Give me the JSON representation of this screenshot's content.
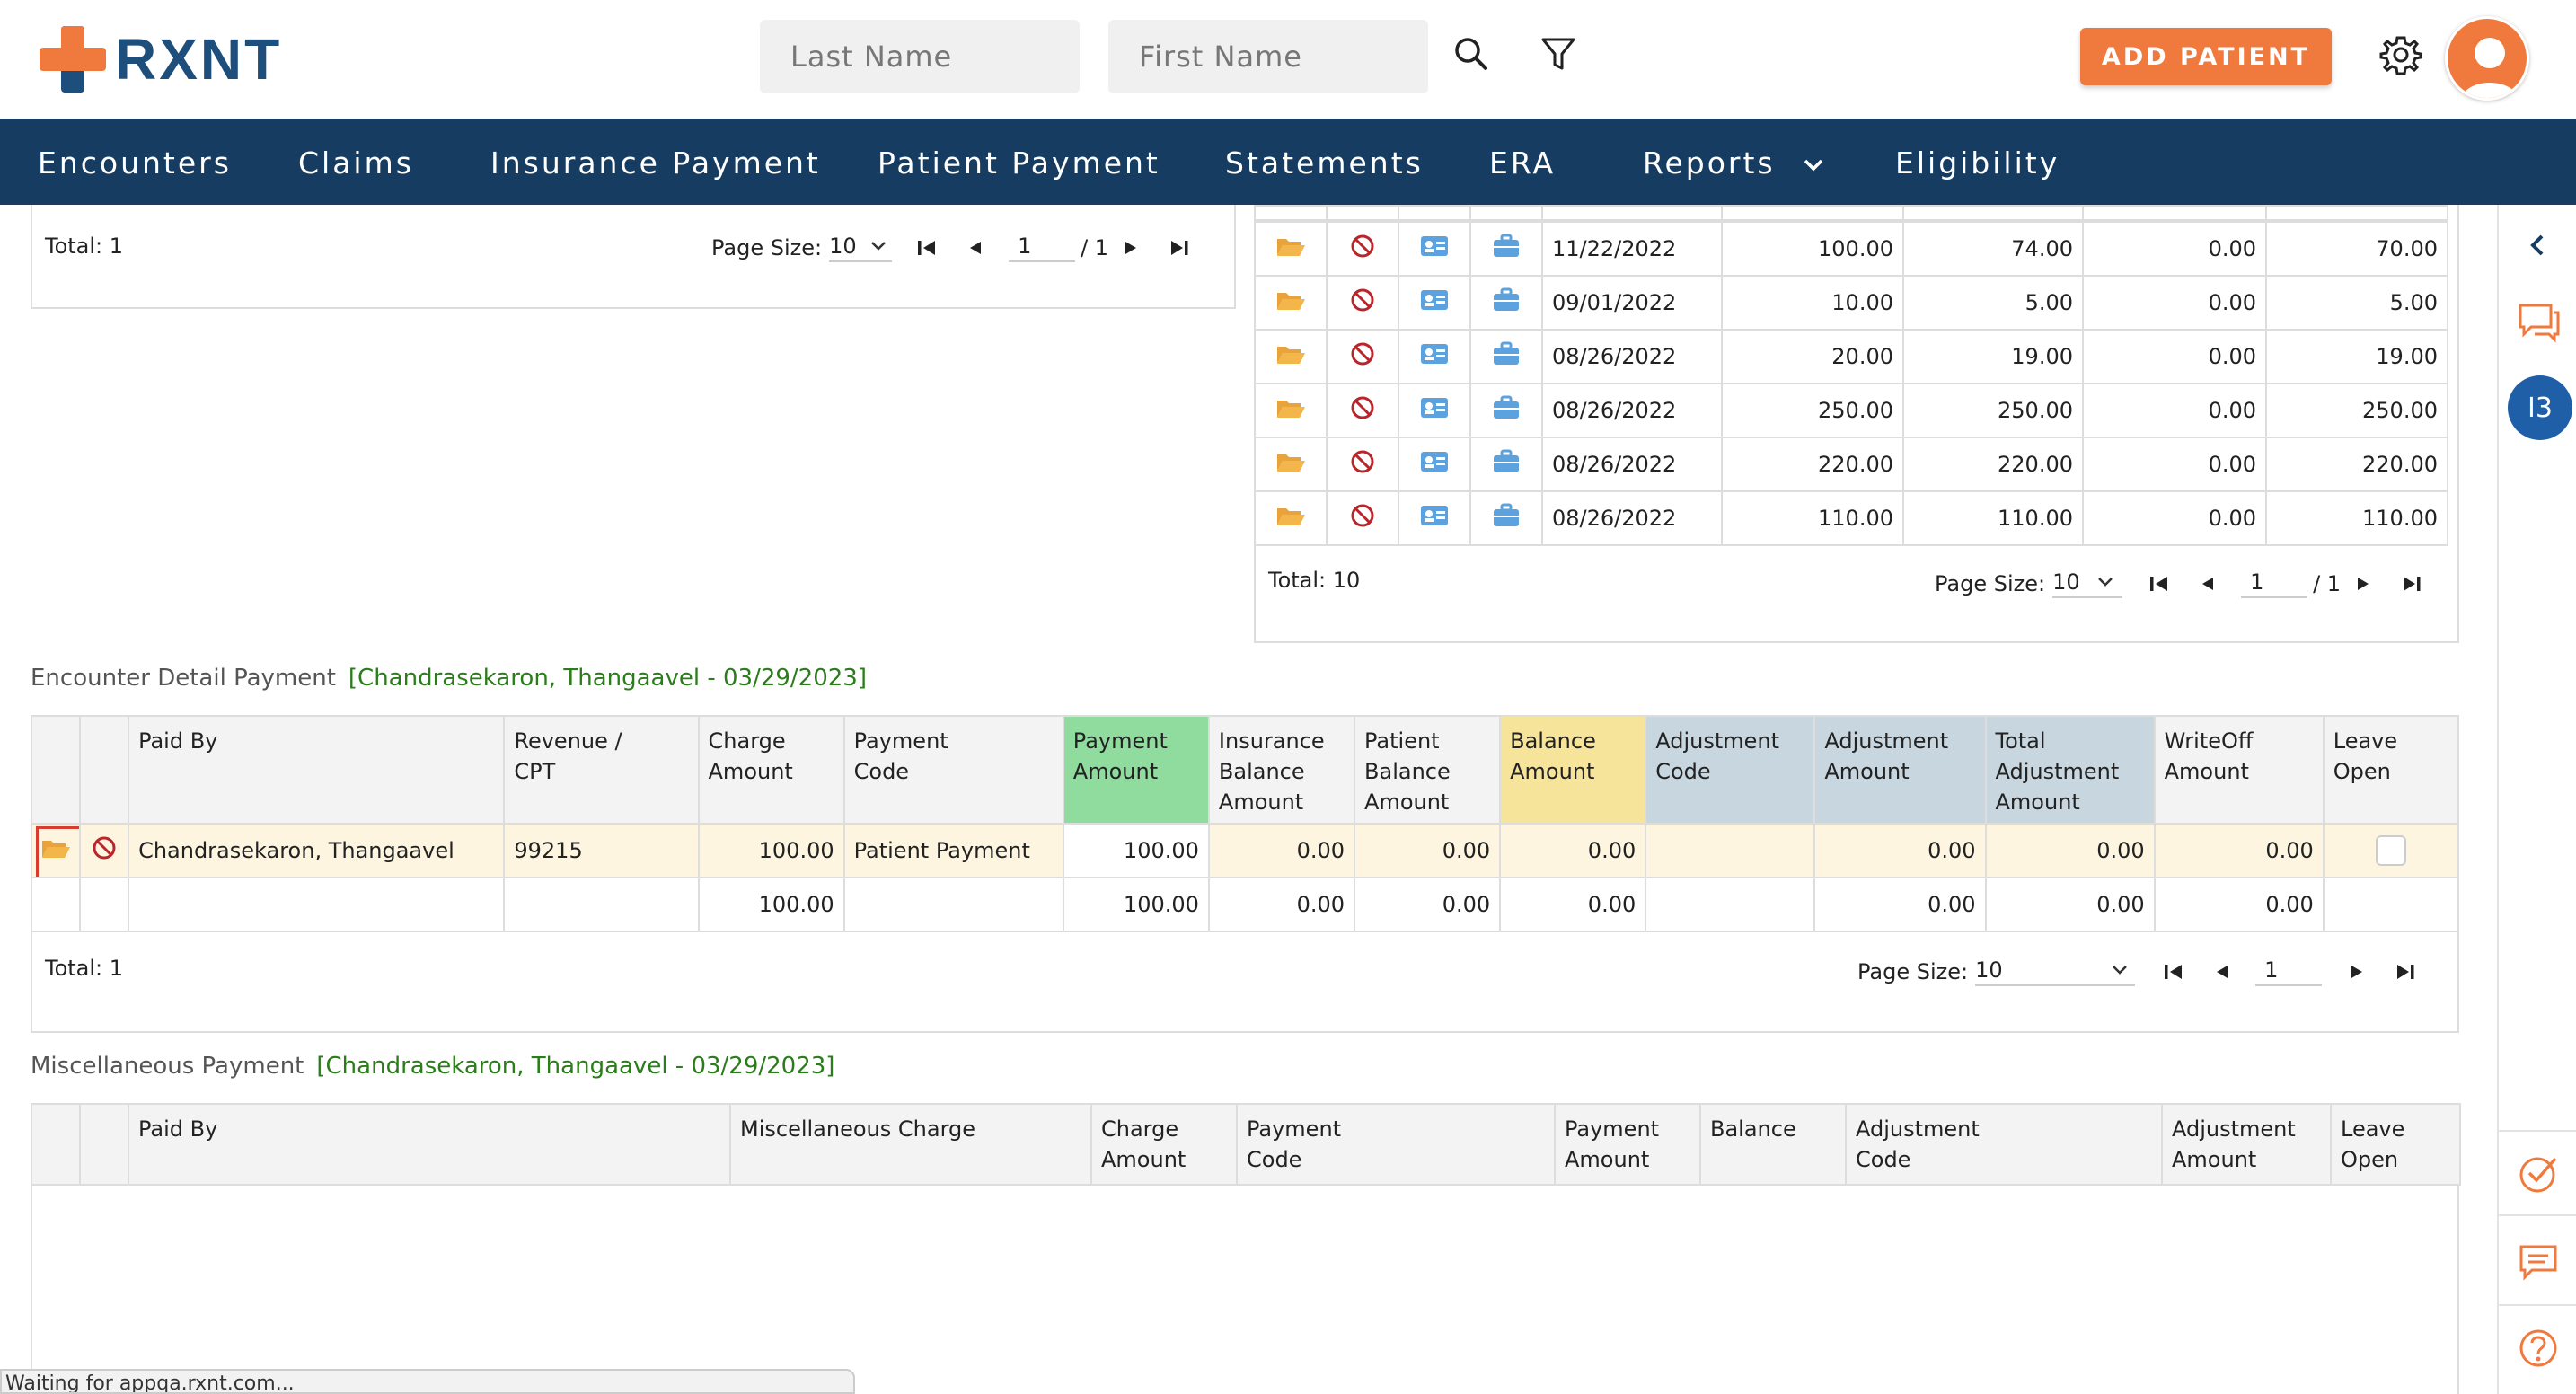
{
  "brand": {
    "logo_text": "RXNT"
  },
  "search": {
    "last_name_placeholder": "Last Name",
    "first_name_placeholder": "First Name"
  },
  "header": {
    "add_patient_label": "ADD PATIENT"
  },
  "nav": {
    "items": [
      "Encounters",
      "Claims",
      "Insurance Payment",
      "Patient Payment",
      "Statements",
      "ERA",
      "Reports",
      "Eligibility"
    ]
  },
  "rail": {
    "badge": "I3"
  },
  "top_left_pager": {
    "total": "Total: 1",
    "page_size_label": "Page Size:",
    "page_size": "10",
    "page": "1",
    "of": "/ 1"
  },
  "top_right_table": {
    "rows": [
      {
        "date": "11/22/2022",
        "c1": "100.00",
        "c2": "74.00",
        "c3": "0.00",
        "c4": "70.00"
      },
      {
        "date": "09/01/2022",
        "c1": "10.00",
        "c2": "5.00",
        "c3": "0.00",
        "c4": "5.00"
      },
      {
        "date": "08/26/2022",
        "c1": "20.00",
        "c2": "19.00",
        "c3": "0.00",
        "c4": "19.00"
      },
      {
        "date": "08/26/2022",
        "c1": "250.00",
        "c2": "250.00",
        "c3": "0.00",
        "c4": "250.00"
      },
      {
        "date": "08/26/2022",
        "c1": "220.00",
        "c2": "220.00",
        "c3": "0.00",
        "c4": "220.00"
      },
      {
        "date": "08/26/2022",
        "c1": "110.00",
        "c2": "110.00",
        "c3": "0.00",
        "c4": "110.00"
      }
    ],
    "pager": {
      "total": "Total: 10",
      "page_size_label": "Page Size:",
      "page_size": "10",
      "page": "1",
      "of": "/ 1"
    }
  },
  "encounter_detail": {
    "title": "Encounter Detail Payment",
    "subtitle": "[Chandrasekaron, Thangaavel - 03/29/2023]",
    "headers": {
      "paid_by": "Paid By",
      "revenue_cpt": "Revenue / CPT",
      "charge_amount": "Charge Amount",
      "payment_code": "Payment Code",
      "payment_amount": "Payment Amount",
      "insurance_balance": "Insurance Balance Amount",
      "patient_balance": "Patient Balance Amount",
      "balance_amount": "Balance Amount",
      "adjustment_code": "Adjustment Code",
      "adjustment_amount": "Adjustment Amount",
      "total_adjustment": "Total Adjustment Amount",
      "writeoff": "WriteOff Amount",
      "leave_open": "Leave Open"
    },
    "row": {
      "paid_by": "Chandrasekaron, Thangaavel",
      "cpt": "99215",
      "charge": "100.00",
      "payment_code": "Patient Payment",
      "payment_amount": "100.00",
      "insurance_balance": "0.00",
      "patient_balance": "0.00",
      "balance": "0.00",
      "adjustment_code": "",
      "adjustment_amount": "0.00",
      "total_adjustment": "0.00",
      "writeoff": "0.00"
    },
    "totals": {
      "charge": "100.00",
      "payment_amount": "100.00",
      "insurance_balance": "0.00",
      "patient_balance": "0.00",
      "balance": "0.00",
      "adjustment_amount": "0.00",
      "total_adjustment": "0.00",
      "writeoff": "0.00"
    },
    "pager": {
      "total": "Total: 1",
      "page_size_label": "Page Size:",
      "page_size": "10",
      "page": "1"
    }
  },
  "misc_payment": {
    "title": "Miscellaneous Payment",
    "subtitle": "[Chandrasekaron, Thangaavel - 03/29/2023]",
    "headers": {
      "paid_by": "Paid By",
      "misc_charge": "Miscellaneous Charge",
      "charge_amount": "Charge Amount",
      "payment_code": "Payment Code",
      "payment_amount": "Payment Amount",
      "balance": "Balance",
      "adjustment_code": "Adjustment Code",
      "adjustment_amount": "Adjustment Amount",
      "leave_open": "Leave Open"
    }
  },
  "status_bar": {
    "text": "Waiting for appqa.rxnt.com..."
  },
  "colors": {
    "brand_blue": "#1e4f7c",
    "brand_orange": "#f07a3e",
    "nav_bg": "#163d61",
    "payment_green": "#8fdc9e",
    "balance_yellow": "#f6e49a",
    "adjust_blue": "#c7d6df",
    "selected_row": "#fdf5e0"
  }
}
